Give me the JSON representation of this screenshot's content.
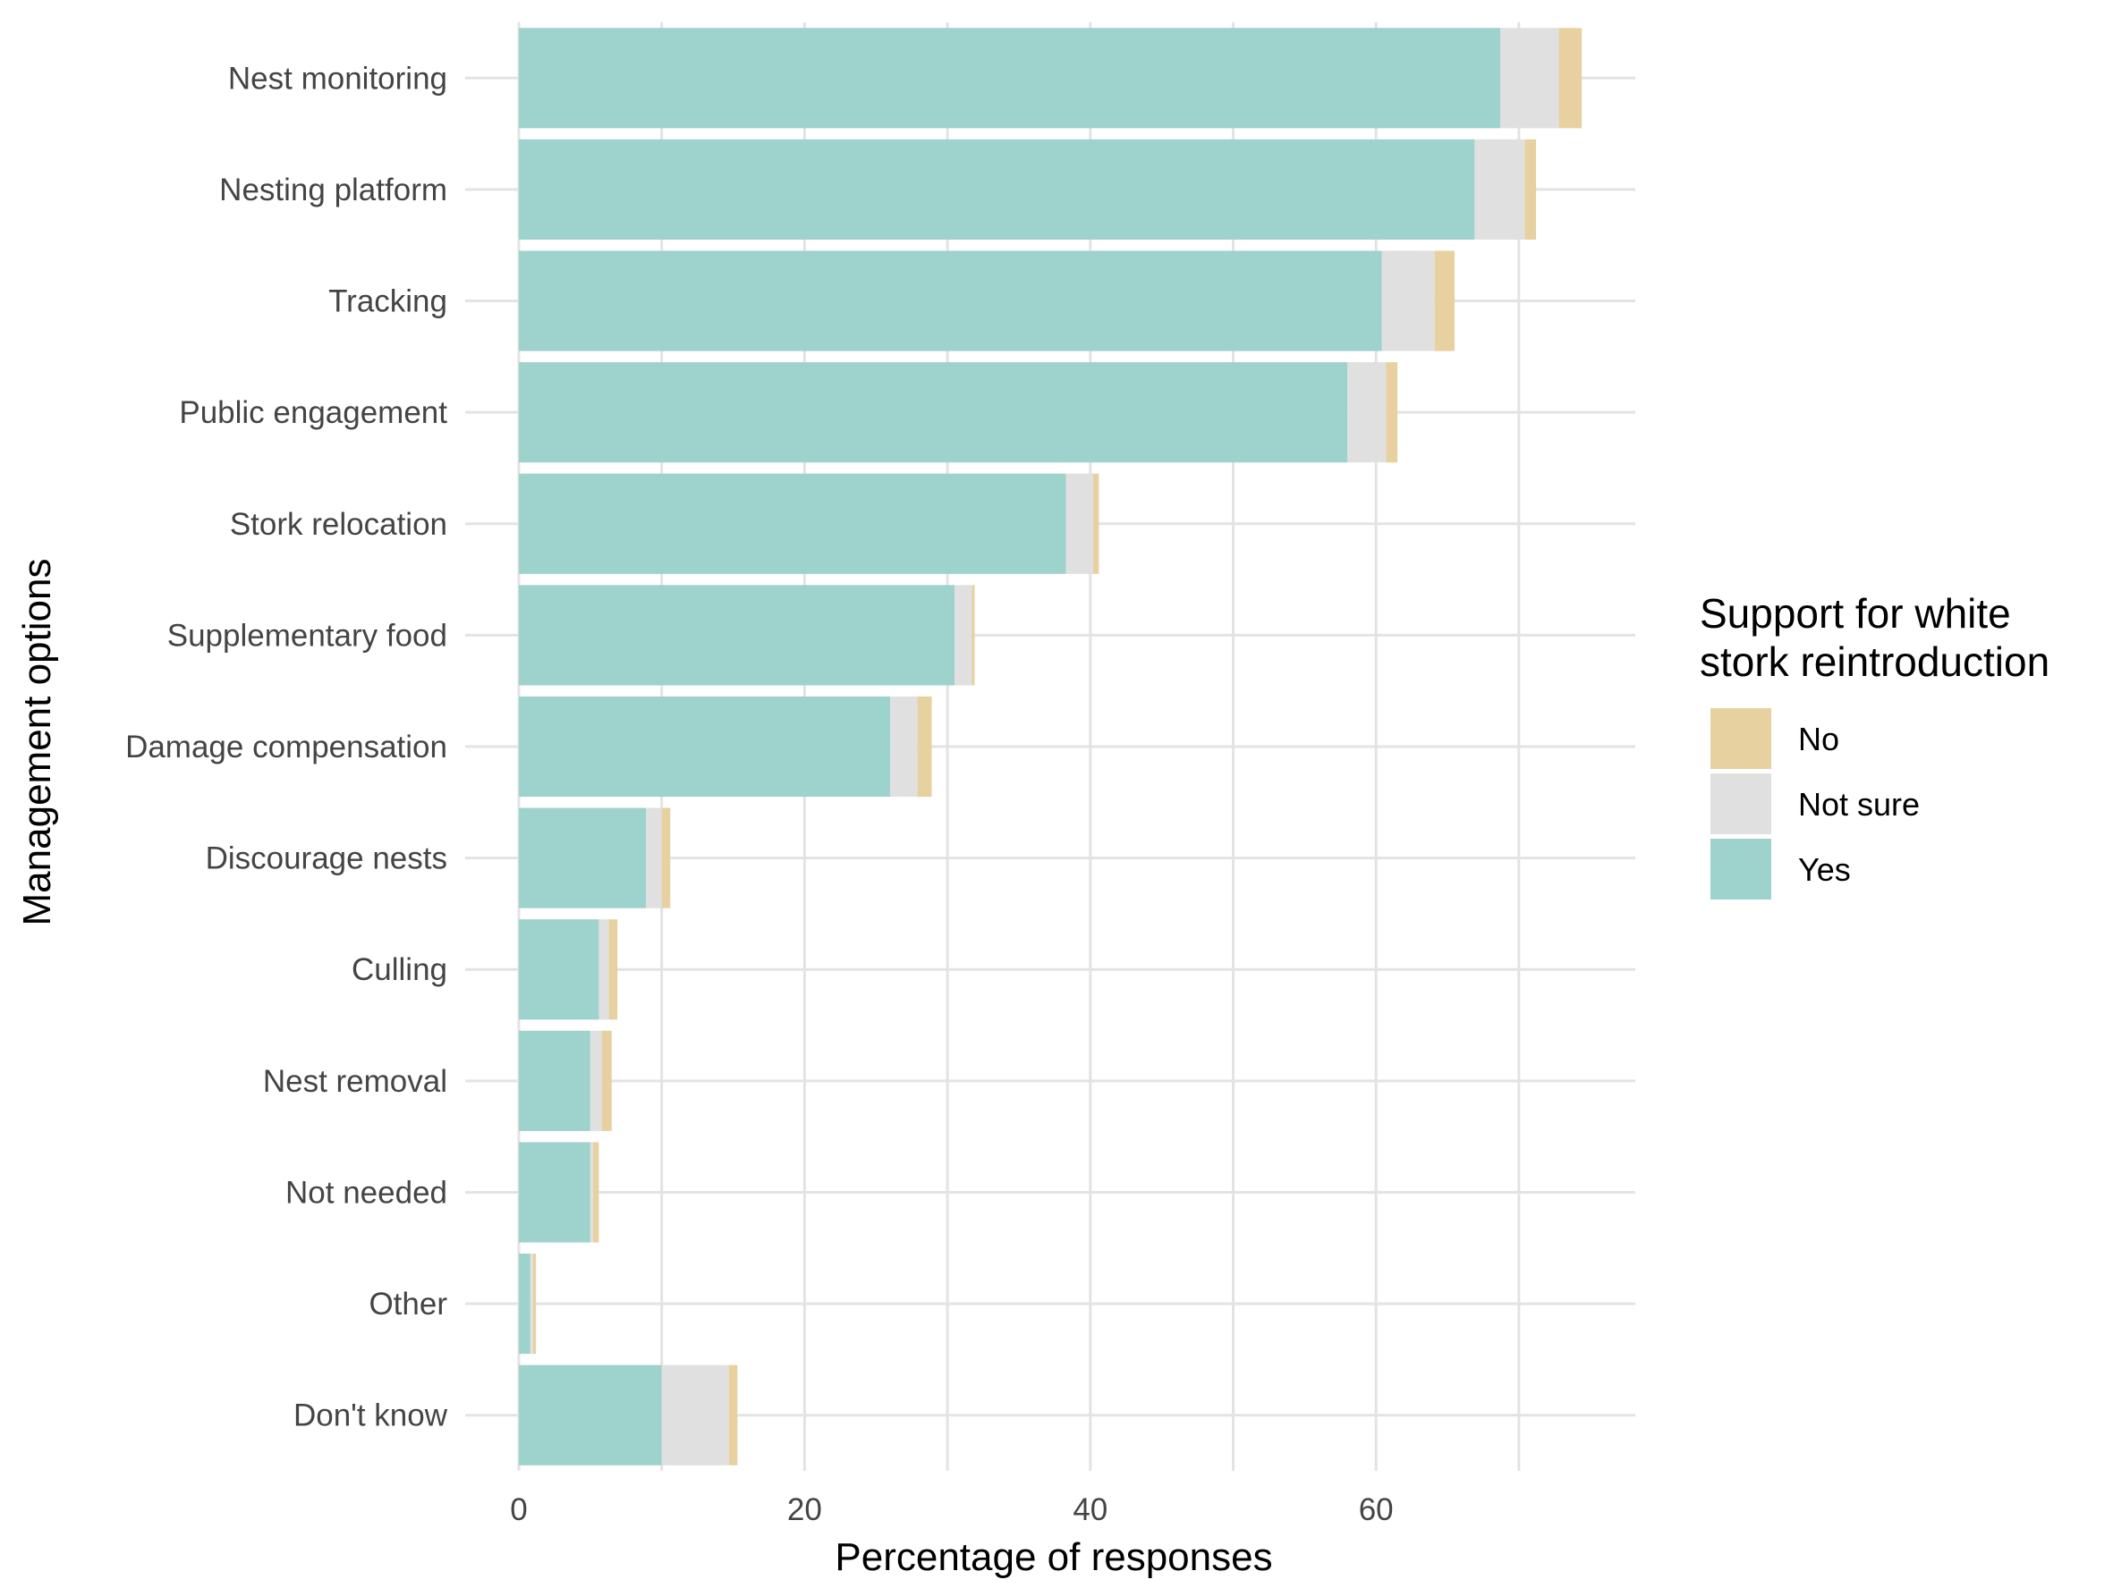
{
  "chart_data": {
    "type": "bar",
    "orientation": "horizontal",
    "stacked": true,
    "xlabel": "Percentage of responses",
    "ylabel": "Management options",
    "xlim": [
      0,
      78
    ],
    "x_ticks": [
      0,
      20,
      40,
      60
    ],
    "grid": true,
    "legend_position": "right",
    "categories": [
      "Nest monitoring",
      "Nesting platform",
      "Tracking",
      "Public engagement",
      "Stork relocation",
      "Supplementary food",
      "Damage compensation",
      "Discourage nests",
      "Culling",
      "Nest removal",
      "Not needed",
      "Other",
      "Don't know"
    ],
    "series": [
      {
        "name": "Yes",
        "color": "#9ed2cc",
        "values": [
          68.7,
          66.9,
          60.4,
          58.0,
          38.3,
          30.5,
          26.0,
          8.9,
          5.6,
          5.0,
          5.0,
          0.8,
          10.0
        ]
      },
      {
        "name": "Not sure",
        "color": "#e0e0e0",
        "values": [
          4.1,
          3.5,
          3.7,
          2.7,
          1.9,
          1.2,
          1.9,
          1.1,
          0.7,
          0.8,
          0.2,
          0.2,
          4.7
        ]
      },
      {
        "name": "No",
        "color": "#e8d1a1",
        "values": [
          1.6,
          0.8,
          1.4,
          0.8,
          0.4,
          0.2,
          1.0,
          0.6,
          0.6,
          0.7,
          0.4,
          0.2,
          0.6
        ]
      }
    ],
    "legend": {
      "title_lines": [
        "Support for white",
        "stork reintroduction"
      ],
      "items": [
        {
          "label": "No",
          "color": "#e8d1a1"
        },
        {
          "label": "Not sure",
          "color": "#e0e0e0"
        },
        {
          "label": "Yes",
          "color": "#9ed2cc"
        }
      ]
    }
  }
}
